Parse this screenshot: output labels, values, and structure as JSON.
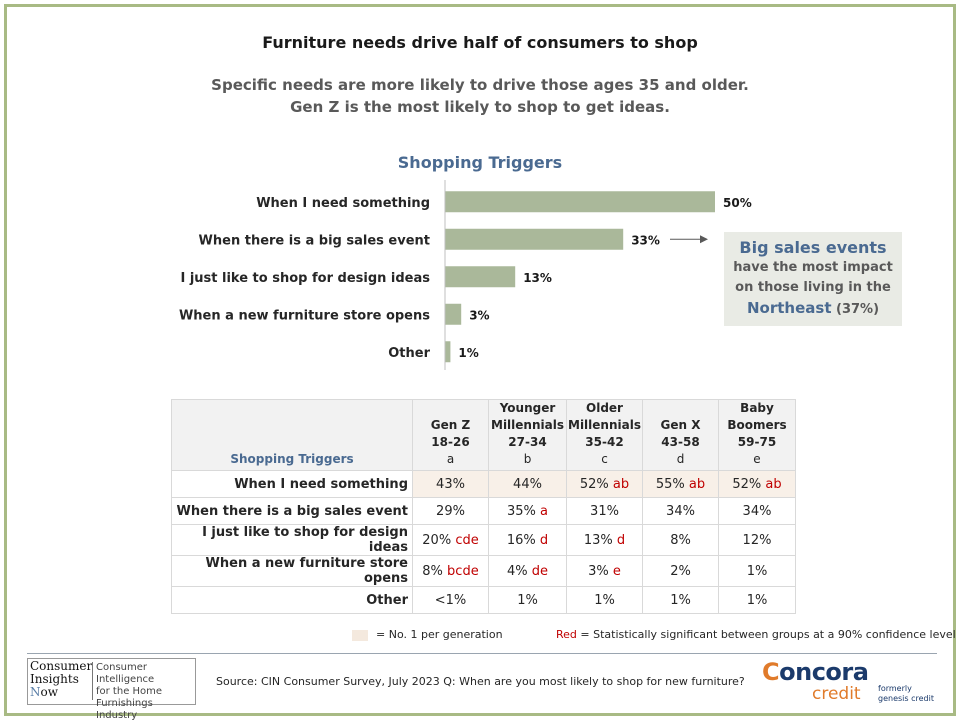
{
  "title": "Furniture needs drive half of consumers to shop",
  "subtitle_line1": "Specific needs are more likely to drive those ages 35 and older.",
  "subtitle_line2": "Gen Z is the most likely to shop to get ideas.",
  "chart_data": {
    "type": "bar",
    "orientation": "horizontal",
    "title": "Shopping Triggers",
    "categories": [
      "When I need something",
      "When there is a big sales event",
      "I just like to shop for design ideas",
      "When a new furniture store opens",
      "Other"
    ],
    "values": [
      50,
      33,
      13,
      3,
      1
    ],
    "value_labels": [
      "50%",
      "33%",
      "13%",
      "3%",
      "1%"
    ],
    "xlim": [
      0,
      100
    ],
    "grid": false,
    "bar_color": "#aab89a"
  },
  "callout": {
    "line1": "Big sales events",
    "line2": "have the most impact",
    "line3": "on those living in the",
    "line4_blue": "Northeast",
    "line4_rest": " (37%)"
  },
  "table": {
    "title": "Shopping Triggers",
    "columns": [
      {
        "l1": "",
        "l2": "Gen Z",
        "l3": "18-26",
        "l4": "a"
      },
      {
        "l1": "Younger",
        "l2": "Millennials",
        "l3": "27-34",
        "l4": "b"
      },
      {
        "l1": "Older",
        "l2": "Millennials",
        "l3": "35-42",
        "l4": "c"
      },
      {
        "l1": "",
        "l2": "Gen X",
        "l3": "43-58",
        "l4": "d"
      },
      {
        "l1": "Baby",
        "l2": "Boomers",
        "l3": "59-75",
        "l4": "e"
      }
    ],
    "rows": [
      {
        "label": "When I need something",
        "cells": [
          {
            "v": "43%",
            "s": ""
          },
          {
            "v": "44%",
            "s": ""
          },
          {
            "v": "52%",
            "s": "ab"
          },
          {
            "v": "55%",
            "s": "ab"
          },
          {
            "v": "52%",
            "s": "ab"
          }
        ]
      },
      {
        "label": "When there is a big sales event",
        "cells": [
          {
            "v": "29%",
            "s": ""
          },
          {
            "v": "35%",
            "s": "a"
          },
          {
            "v": "31%",
            "s": ""
          },
          {
            "v": "34%",
            "s": ""
          },
          {
            "v": "34%",
            "s": ""
          }
        ]
      },
      {
        "label": "I just like to shop for design ideas",
        "cells": [
          {
            "v": "20%",
            "s": "cde"
          },
          {
            "v": "16%",
            "s": "d"
          },
          {
            "v": "13%",
            "s": "d"
          },
          {
            "v": "8%",
            "s": ""
          },
          {
            "v": "12%",
            "s": ""
          }
        ]
      },
      {
        "label": "When a new furniture store opens",
        "cells": [
          {
            "v": "8%",
            "s": "bcde"
          },
          {
            "v": "4%",
            "s": "de"
          },
          {
            "v": "3%",
            "s": "e"
          },
          {
            "v": "2%",
            "s": ""
          },
          {
            "v": "1%",
            "s": ""
          }
        ]
      },
      {
        "label": "Other",
        "cells": [
          {
            "v": "<1%",
            "s": ""
          },
          {
            "v": "1%",
            "s": ""
          },
          {
            "v": "1%",
            "s": ""
          },
          {
            "v": "1%",
            "s": ""
          },
          {
            "v": "1%",
            "s": ""
          }
        ]
      }
    ],
    "highlight_color": "#f8f0e8"
  },
  "legend": {
    "no1": "= No. 1 per generation",
    "red_word": "Red",
    "red_rest": " = Statistically significant between groups at a 90% confidence level"
  },
  "footer": {
    "logo_l1": "Consumer",
    "logo_l2": "Insights",
    "logo_n": "N",
    "logo_l3": "ow",
    "logo_desc1": "Consumer Intelligence",
    "logo_desc2": "for the Home",
    "logo_desc3": "Furnishings Industry",
    "source": "Source:  CIN Consumer Survey, July 2023    Q: When are you most likely to shop for new furniture?",
    "brand_c": "C",
    "brand_rest": "oncora",
    "brand_credit": "credit",
    "formerly1": "formerly",
    "formerly2": "genesis credit"
  },
  "colors": {
    "frame": "#a8ba84",
    "accent_blue": "#4a6a91",
    "significant_red": "#c00000"
  }
}
